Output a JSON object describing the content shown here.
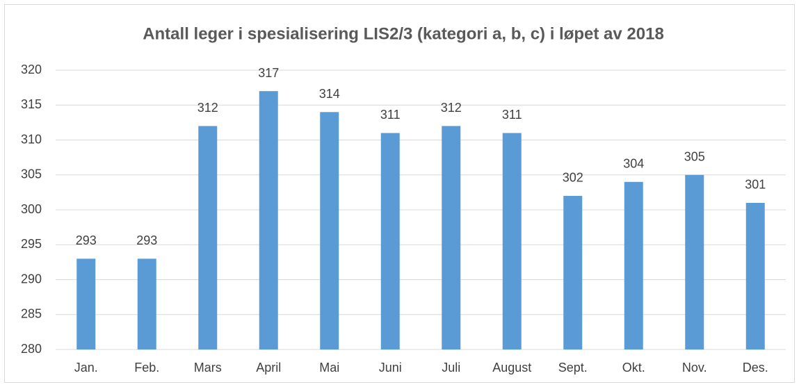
{
  "chart_data": {
    "type": "bar",
    "title": "Antall leger i spesialisering LIS2/3 (kategori a, b, c) i løpet av 2018",
    "categories": [
      "Jan.",
      "Feb.",
      "Mars",
      "April",
      "Mai",
      "Juni",
      "Juli",
      "August",
      "Sept.",
      "Okt.",
      "Nov.",
      "Des."
    ],
    "values": [
      293,
      293,
      312,
      317,
      314,
      311,
      312,
      311,
      302,
      304,
      305,
      301
    ],
    "color": "#5b9bd5",
    "ylim": [
      280,
      320
    ],
    "yticks": [
      280,
      285,
      290,
      295,
      300,
      305,
      310,
      315,
      320
    ],
    "grid": true
  }
}
